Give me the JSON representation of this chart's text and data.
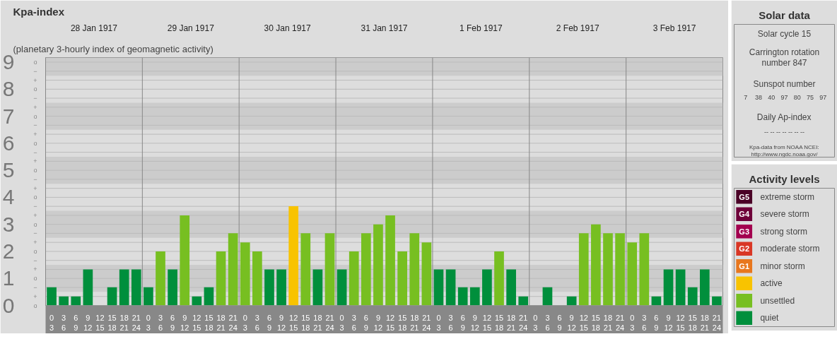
{
  "chart_data": [
    {
      "type": "bar",
      "title": "Kpa-index",
      "subtitle": "(planetary 3-hourly index of geomagnetic activity)",
      "categories": [
        "0\n3",
        "3\n6",
        "6\n9",
        "9\n12",
        "12\n15",
        "15\n18",
        "18\n21",
        "21\n24",
        "0\n3",
        "3\n6",
        "6\n9",
        "9\n12",
        "12\n15",
        "15\n18",
        "18\n21",
        "21\n24",
        "0\n3",
        "3\n6",
        "6\n9",
        "9\n12",
        "12\n15",
        "15\n18",
        "18\n21",
        "21\n24",
        "0\n3",
        "3\n6",
        "6\n9",
        "9\n12",
        "12\n15",
        "15\n18",
        "18\n21",
        "21\n24",
        "0\n3",
        "3\n6",
        "6\n9",
        "9\n12",
        "12\n15",
        "15\n18",
        "18\n21",
        "21\n24",
        "0\n3",
        "3\n6",
        "6\n9",
        "9\n12",
        "12\n15",
        "15\n18",
        "18\n21",
        "21\n24",
        "0\n3",
        "3\n6",
        "6\n9",
        "9\n12",
        "12\n15",
        "15\n18",
        "18\n21",
        "21\n24"
      ],
      "values": [
        0.67,
        0.33,
        0.33,
        1.33,
        0,
        0.67,
        1.33,
        1.33,
        0.67,
        2,
        1.33,
        3.33,
        0.33,
        0.67,
        2,
        2.67,
        2.33,
        2,
        1.33,
        1.33,
        3.67,
        2.67,
        1.33,
        2.67,
        1.33,
        2,
        2.67,
        3,
        3.33,
        2,
        2.67,
        2.33,
        1.33,
        1.33,
        0.67,
        0.67,
        1.33,
        2,
        1.33,
        0.33,
        0,
        0.67,
        0,
        0.33,
        2.67,
        3,
        2.67,
        2.67,
        2.33,
        2.67,
        0.33,
        1.33,
        1.33,
        0.67,
        1.33,
        0.33
      ],
      "colors": [
        "#008f3c",
        "#008f3c",
        "#008f3c",
        "#008f3c",
        "#008f3c",
        "#008f3c",
        "#008f3c",
        "#008f3c",
        "#008f3c",
        "#77bf21",
        "#008f3c",
        "#77bf21",
        "#008f3c",
        "#008f3c",
        "#77bf21",
        "#77bf21",
        "#77bf21",
        "#77bf21",
        "#008f3c",
        "#008f3c",
        "#f8c300",
        "#77bf21",
        "#008f3c",
        "#77bf21",
        "#008f3c",
        "#77bf21",
        "#77bf21",
        "#77bf21",
        "#77bf21",
        "#77bf21",
        "#77bf21",
        "#77bf21",
        "#008f3c",
        "#008f3c",
        "#008f3c",
        "#008f3c",
        "#008f3c",
        "#77bf21",
        "#008f3c",
        "#008f3c",
        "#008f3c",
        "#008f3c",
        "#008f3c",
        "#008f3c",
        "#77bf21",
        "#77bf21",
        "#77bf21",
        "#77bf21",
        "#77bf21",
        "#77bf21",
        "#008f3c",
        "#008f3c",
        "#008f3c",
        "#008f3c",
        "#008f3c",
        "#008f3c"
      ],
      "ylim": [
        0,
        9.17
      ],
      "yticks": [
        0,
        1,
        2,
        3,
        4,
        5,
        6,
        7,
        8,
        9
      ],
      "y2_categories": [
        "o",
        "−",
        "+",
        "o",
        "−",
        "+",
        "o",
        "−",
        "+",
        "o",
        "−",
        "+",
        "o",
        "−",
        "+",
        "o",
        "−",
        "+",
        "o",
        "−",
        "+",
        "o",
        "−",
        "+",
        "o",
        "−",
        "+",
        "o"
      ],
      "bands": [
        {
          "axis": "y",
          "from": 0.5,
          "to": 1.5,
          "color": "#cccccc"
        },
        {
          "axis": "y",
          "from": 2.5,
          "to": 3.5,
          "color": "#cccccc"
        },
        {
          "axis": "y",
          "from": 4.5,
          "to": 5.5,
          "color": "#cccccc"
        },
        {
          "axis": "y",
          "from": 6.5,
          "to": 7.5,
          "color": "#cccccc"
        },
        {
          "axis": "y",
          "from": 8.5,
          "to": 9.17,
          "color": "#cccccc"
        }
      ],
      "annotations": [
        "28 Jan 1917",
        "29 Jan 1917",
        "30 Jan 1917",
        "31 Jan 1917",
        "1 Feb 1917",
        "2 Feb 1917",
        "3 Feb 1917"
      ],
      "grid": true
    },
    {
      "type": "other",
      "title": "Solar data",
      "annotations": [
        "Solar cycle 15",
        "Carrington rotation\nnumber 847",
        "Sunspot number",
        "Daily Ap-index",
        "-- -- -- -- -- -- --",
        "Kpa-data from NOAA NCEI:\nhttp://www.ngdc.noaa.gov/"
      ],
      "values": [
        7,
        38,
        40,
        97,
        80,
        75,
        97
      ],
      "data_labels": true
    },
    {
      "type": "other",
      "title": "Activity levels",
      "categories": [
        "extreme storm",
        "severe storm",
        "strong storm",
        "moderate storm",
        "minor storm",
        "active",
        "unsettled",
        "quiet"
      ],
      "colors": [
        "#4a0026",
        "#6e0039",
        "#a3004f",
        "#d93725",
        "#e8771e",
        "#f8c300",
        "#77bf21",
        "#008f3c"
      ],
      "value_labels": [
        "G5",
        "G4",
        "G3",
        "G2",
        "G1",
        null,
        null,
        null
      ]
    }
  ]
}
